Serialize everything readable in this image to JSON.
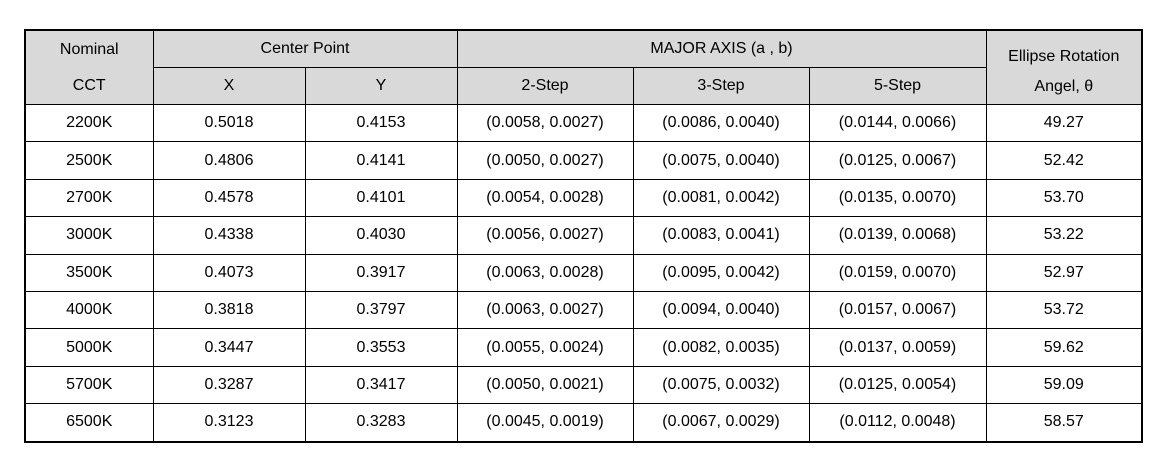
{
  "table": {
    "header": {
      "cct": [
        "Nominal",
        "CCT"
      ],
      "center_point": "Center Point",
      "x": "X",
      "y": "Y",
      "major_axis": "MAJOR AXIS (a , b)",
      "steps": [
        "2-Step",
        "3-Step",
        "5-Step"
      ],
      "rotation": [
        "Ellipse Rotation",
        "Angel, θ"
      ]
    },
    "rows": [
      [
        "2200K",
        "0.5018",
        "0.4153",
        "(0.0058, 0.0027)",
        "(0.0086, 0.0040)",
        "(0.0144, 0.0066)",
        "49.27"
      ],
      [
        "2500K",
        "0.4806",
        "0.4141",
        "(0.0050, 0.0027)",
        "(0.0075, 0.0040)",
        "(0.0125, 0.0067)",
        "52.42"
      ],
      [
        "2700K",
        "0.4578",
        "0.4101",
        "(0.0054, 0.0028)",
        "(0.0081, 0.0042)",
        "(0.0135, 0.0070)",
        "53.70"
      ],
      [
        "3000K",
        "0.4338",
        "0.4030",
        "(0.0056, 0.0027)",
        "(0.0083, 0.0041)",
        "(0.0139, 0.0068)",
        "53.22"
      ],
      [
        "3500K",
        "0.4073",
        "0.3917",
        "(0.0063, 0.0028)",
        "(0.0095, 0.0042)",
        "(0.0159, 0.0070)",
        "52.97"
      ],
      [
        "4000K",
        "0.3818",
        "0.3797",
        "(0.0063, 0.0027)",
        "(0.0094, 0.0040)",
        "(0.0157, 0.0067)",
        "53.72"
      ],
      [
        "5000K",
        "0.3447",
        "0.3553",
        "(0.0055, 0.0024)",
        "(0.0082, 0.0035)",
        "(0.0137, 0.0059)",
        "59.62"
      ],
      [
        "5700K",
        "0.3287",
        "0.3417",
        "(0.0050, 0.0021)",
        "(0.0075, 0.0032)",
        "(0.0125, 0.0054)",
        "59.09"
      ],
      [
        "6500K",
        "0.3123",
        "0.3283",
        "(0.0045, 0.0019)",
        "(0.0067, 0.0029)",
        "(0.0112, 0.0048)",
        "58.57"
      ]
    ]
  }
}
